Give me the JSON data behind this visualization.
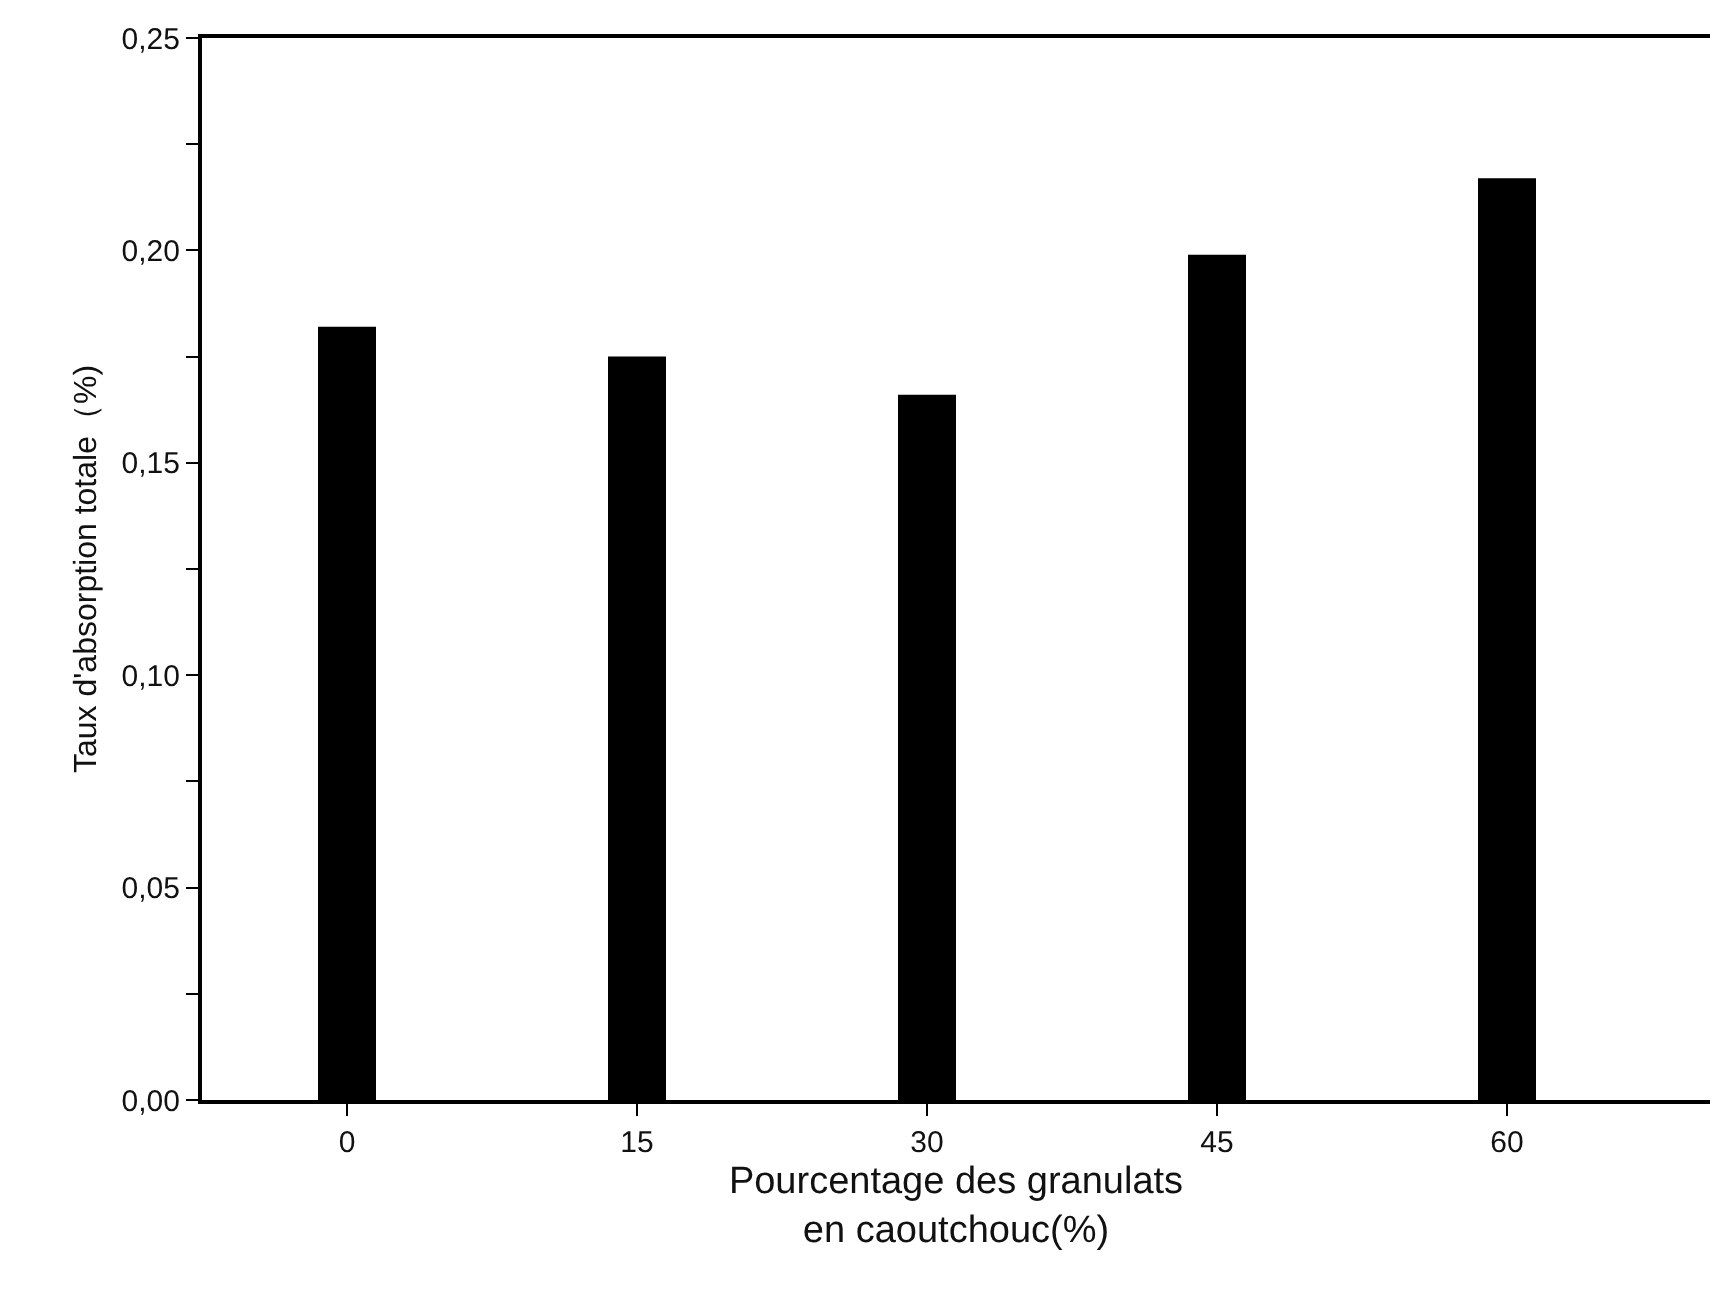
{
  "chart_data": {
    "type": "bar",
    "xlabel": "Pourcentage des granulats\nen caoutchouc(%)",
    "ylabel": "Taux d'absorption totale（%)",
    "categories": [
      "0",
      "15",
      "30",
      "45",
      "60"
    ],
    "values": [
      0.182,
      0.175,
      0.166,
      0.199,
      0.217
    ],
    "color": "#000000",
    "ylim": [
      0,
      0.25
    ],
    "yticks": [
      {
        "value": 0,
        "label": "0,00"
      },
      {
        "value": 0.025,
        "label": null
      },
      {
        "value": 0.05,
        "label": "0,05"
      },
      {
        "value": 0.075,
        "label": null
      },
      {
        "value": 0.1,
        "label": "0,10"
      },
      {
        "value": 0.125,
        "label": null
      },
      {
        "value": 0.15,
        "label": "0,15"
      },
      {
        "value": 0.175,
        "label": null
      },
      {
        "value": 0.2,
        "label": "0,20"
      },
      {
        "value": 0.225,
        "label": null
      },
      {
        "value": 0.25,
        "label": "0,25"
      }
    ]
  }
}
